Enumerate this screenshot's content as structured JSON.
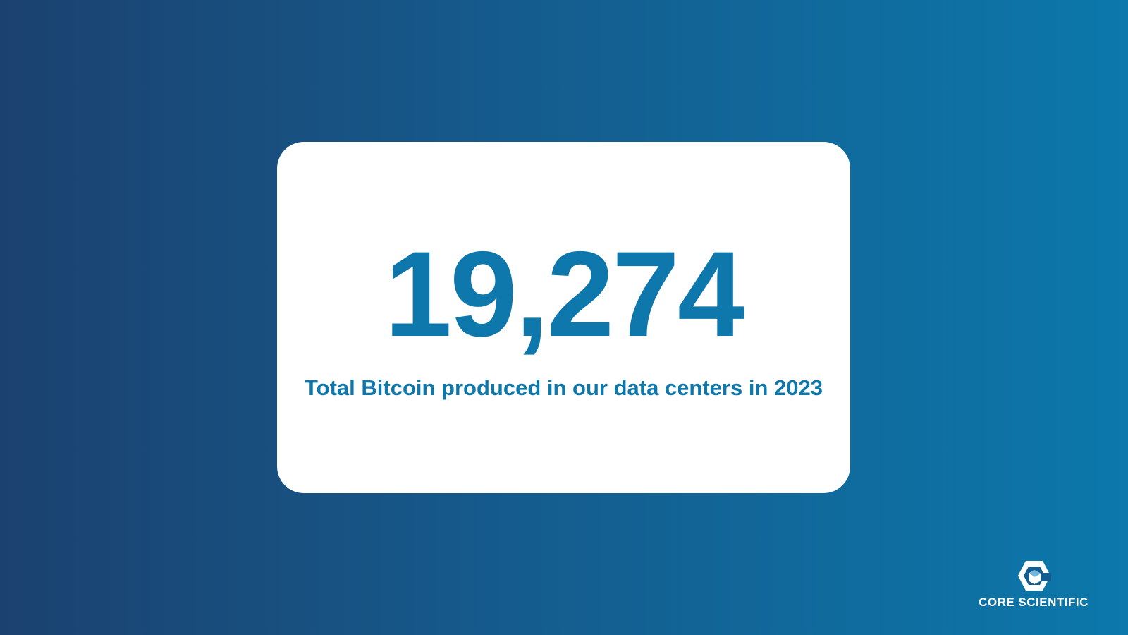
{
  "stat": {
    "value": "19,274",
    "caption": "Total Bitcoin produced in our data centers in 2023"
  },
  "logo": {
    "text": "CORE SCIENTIFIC"
  }
}
